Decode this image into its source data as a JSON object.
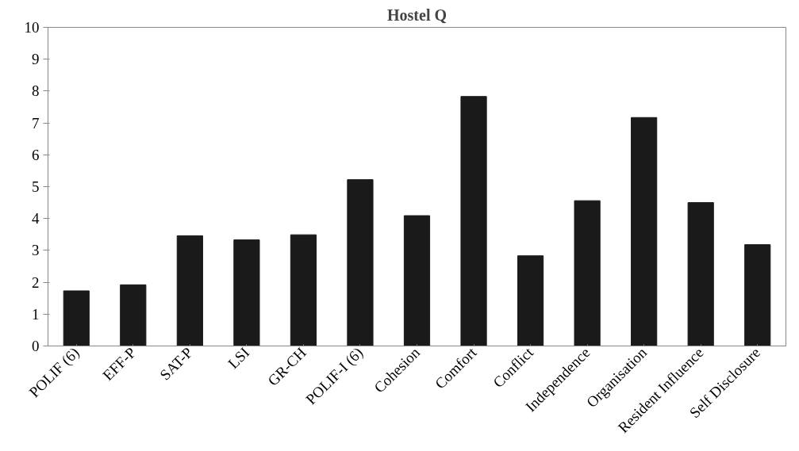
{
  "chart_data": {
    "type": "bar",
    "title": "Hostel Q",
    "categories": [
      "POLIF (6)",
      "EFF-P",
      "SAT-P",
      "LSI",
      "GR-CH",
      "POLIF-I (6)",
      "Cohesion",
      "Comfort",
      "Conflict",
      "Independence",
      "Organisation",
      "Resident Influence",
      "Self Disclosure"
    ],
    "values": [
      1.73,
      1.92,
      3.46,
      3.33,
      3.49,
      5.22,
      4.09,
      7.83,
      2.83,
      4.56,
      7.17,
      4.5,
      3.18
    ],
    "color": "#1a1a1a",
    "ylim": [
      0,
      10
    ],
    "yticks": [
      0,
      1,
      2,
      3,
      4,
      5,
      6,
      7,
      8,
      9,
      10
    ],
    "grid": false
  }
}
